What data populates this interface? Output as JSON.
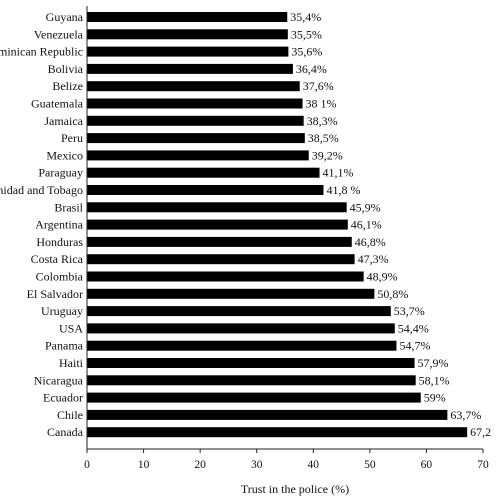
{
  "chart_data": {
    "type": "bar",
    "orientation": "horizontal",
    "categories": [
      "Guyana",
      "Venezuela",
      "Dominican Republic",
      "Bolivia",
      "Belize",
      "Guatemala",
      "Jamaica",
      "Peru",
      "Mexico",
      "Paraguay",
      "Trinidad and Tobago",
      "Brasil",
      "Argentina",
      "Honduras",
      "Costa Rica",
      "Colombia",
      "El Salvador",
      "Uruguay",
      "USA",
      "Panama",
      "Haiti",
      "Nicaragua",
      "Ecuador",
      "Chile",
      "Canada"
    ],
    "values": [
      35.4,
      35.5,
      35.6,
      36.4,
      37.6,
      38.1,
      38.3,
      38.5,
      39.2,
      41.1,
      41.8,
      45.9,
      46.1,
      46.8,
      47.3,
      48.9,
      50.8,
      53.7,
      54.4,
      54.7,
      57.9,
      58.1,
      59,
      63.7,
      67.2
    ],
    "value_labels": [
      "35,4%",
      "35,5%",
      "35,6%",
      "36,4%",
      "37,6%",
      "38 1%",
      "38,3%",
      "38,5%",
      "39,2%",
      "41,1%",
      "41,8 %",
      "45,9%",
      "46,1%",
      "46,8%",
      "47,3%",
      "48,9%",
      "50,8%",
      "53,7%",
      "54,4%",
      "54,7%",
      "57,9%",
      "58,1%",
      "59%",
      "63,7%",
      "67,2"
    ],
    "xlabel": "Trust in the police (%)",
    "ylabel": "",
    "xlim": [
      0,
      70
    ],
    "xticks": [
      0,
      10,
      20,
      30,
      40,
      50,
      60,
      70
    ],
    "grid": false,
    "bar_color": "#000000"
  }
}
